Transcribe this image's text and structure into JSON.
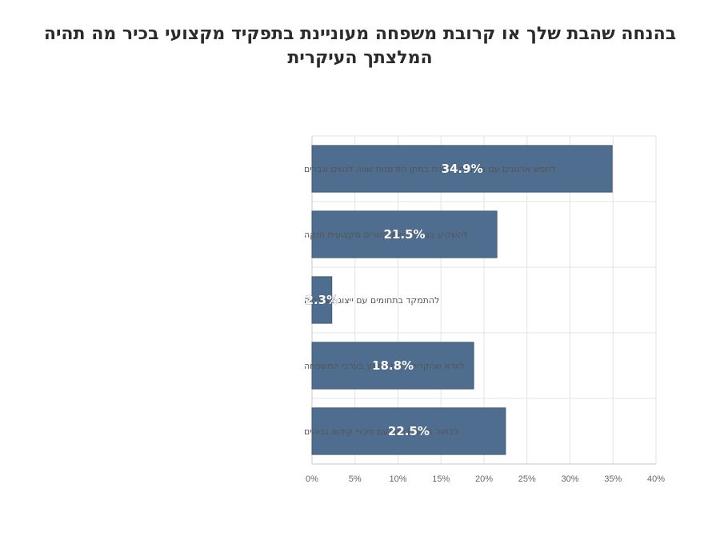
{
  "chart_data": {
    "type": "bar",
    "orientation": "horizontal",
    "title": "בהנחה שהבת שלך או קרובת משפחה מעוניינת בתפקיד מקצועי בכיר מה תהיה המלצתך העיקרית",
    "categories": [
      "לחפש ארגונים עם מדיניות תומכת במתן הזדמנות שווה לנשים וגברים",
      "להשקיע בבניית רשת קשרים מקצועית חזקה",
      "להתמקד בתחומים עם ייצוג נשי גבוה",
      "לוודא שהקריירה לא תפגע בערכי המשפחה",
      "לבחור תחום בטוח עם סיכויי קידום גבוהים"
    ],
    "values": [
      34.9,
      21.5,
      2.3,
      18.8,
      22.5
    ],
    "data_labels": [
      "34.9%",
      "21.5%",
      "2.3%",
      "18.8%",
      "22.5%"
    ],
    "x_ticks": [
      "0%",
      "5%",
      "10%",
      "15%",
      "20%",
      "25%",
      "30%",
      "35%",
      "40%"
    ],
    "xlim": [
      0,
      40
    ],
    "grid": true,
    "bar_color": "#4f6d8f",
    "bar_edge_color": "#3f5a78"
  }
}
